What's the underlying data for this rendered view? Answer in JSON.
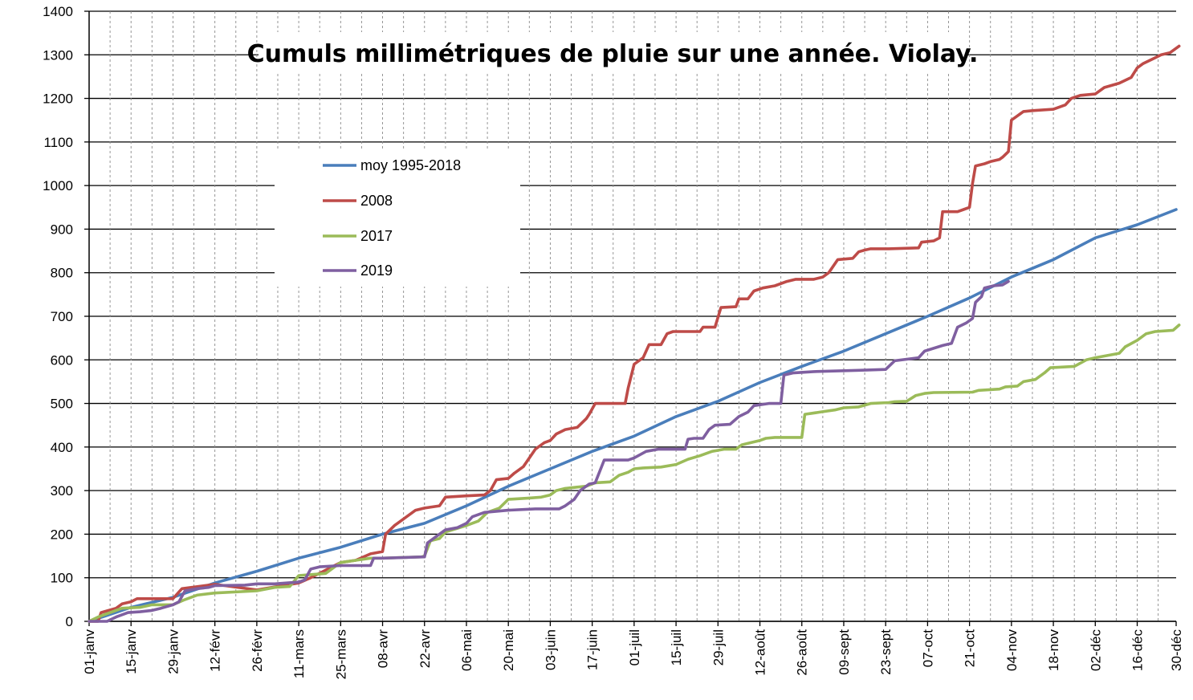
{
  "chart_data": {
    "type": "line",
    "title": "Cumuls millimétriques de pluie sur une année. Violay.",
    "xlabel": "",
    "ylabel": "",
    "ylim": [
      0,
      1400
    ],
    "yticks": [
      0,
      100,
      200,
      300,
      400,
      500,
      600,
      700,
      800,
      900,
      1000,
      1100,
      1200,
      1300,
      1400
    ],
    "xlim": [
      1,
      364
    ],
    "xticks": [
      {
        "day": 1,
        "label": "01-janv"
      },
      {
        "day": 15,
        "label": "15-janv"
      },
      {
        "day": 29,
        "label": "29-janv"
      },
      {
        "day": 43,
        "label": "12-févr"
      },
      {
        "day": 57,
        "label": "26-févr"
      },
      {
        "day": 71,
        "label": "11-mars"
      },
      {
        "day": 85,
        "label": "25-mars"
      },
      {
        "day": 99,
        "label": "08-avr"
      },
      {
        "day": 113,
        "label": "22-avr"
      },
      {
        "day": 127,
        "label": "06-mai"
      },
      {
        "day": 141,
        "label": "20-mai"
      },
      {
        "day": 155,
        "label": "03-juin"
      },
      {
        "day": 169,
        "label": "17-juin"
      },
      {
        "day": 183,
        "label": "01-juil"
      },
      {
        "day": 197,
        "label": "15-juil"
      },
      {
        "day": 211,
        "label": "29-juil"
      },
      {
        "day": 225,
        "label": "12-août"
      },
      {
        "day": 239,
        "label": "26-août"
      },
      {
        "day": 253,
        "label": "09-sept"
      },
      {
        "day": 267,
        "label": "23-sept"
      },
      {
        "day": 281,
        "label": "07-oct"
      },
      {
        "day": 295,
        "label": "21-oct"
      },
      {
        "day": 309,
        "label": "04-nov"
      },
      {
        "day": 323,
        "label": "18-nov"
      },
      {
        "day": 337,
        "label": "02-déc"
      },
      {
        "day": 351,
        "label": "16-déc"
      },
      {
        "day": 364,
        "label": "30-déc"
      }
    ],
    "grid": "horizontal",
    "legend_position": "upper-left",
    "series": [
      {
        "name": "moy 1995-2018",
        "color": "#4a7ebb",
        "points": [
          [
            1,
            0
          ],
          [
            15,
            32
          ],
          [
            29,
            55
          ],
          [
            43,
            88
          ],
          [
            57,
            115
          ],
          [
            71,
            145
          ],
          [
            85,
            170
          ],
          [
            99,
            200
          ],
          [
            113,
            225
          ],
          [
            127,
            265
          ],
          [
            141,
            310
          ],
          [
            155,
            350
          ],
          [
            169,
            390
          ],
          [
            183,
            425
          ],
          [
            197,
            470
          ],
          [
            211,
            505
          ],
          [
            225,
            548
          ],
          [
            239,
            585
          ],
          [
            253,
            620
          ],
          [
            267,
            660
          ],
          [
            281,
            700
          ],
          [
            295,
            742
          ],
          [
            309,
            790
          ],
          [
            323,
            830
          ],
          [
            337,
            880
          ],
          [
            351,
            910
          ],
          [
            364,
            945
          ]
        ]
      },
      {
        "name": "2008",
        "color": "#be4b48",
        "points": [
          [
            1,
            0
          ],
          [
            4,
            0
          ],
          [
            5,
            20
          ],
          [
            10,
            30
          ],
          [
            12,
            40
          ],
          [
            15,
            45
          ],
          [
            17,
            52
          ],
          [
            20,
            52
          ],
          [
            29,
            52
          ],
          [
            32,
            75
          ],
          [
            43,
            85
          ],
          [
            57,
            72
          ],
          [
            71,
            88
          ],
          [
            75,
            100
          ],
          [
            85,
            135
          ],
          [
            90,
            140
          ],
          [
            95,
            155
          ],
          [
            99,
            160
          ],
          [
            100,
            200
          ],
          [
            103,
            220
          ],
          [
            106,
            235
          ],
          [
            110,
            255
          ],
          [
            113,
            260
          ],
          [
            118,
            265
          ],
          [
            120,
            285
          ],
          [
            127,
            288
          ],
          [
            133,
            290
          ],
          [
            135,
            300
          ],
          [
            137,
            325
          ],
          [
            141,
            328
          ],
          [
            143,
            340
          ],
          [
            146,
            355
          ],
          [
            150,
            395
          ],
          [
            153,
            410
          ],
          [
            155,
            415
          ],
          [
            157,
            430
          ],
          [
            160,
            440
          ],
          [
            164,
            445
          ],
          [
            167,
            465
          ],
          [
            168,
            475
          ],
          [
            170,
            500
          ],
          [
            180,
            500
          ],
          [
            181,
            535
          ],
          [
            183,
            590
          ],
          [
            186,
            605
          ],
          [
            188,
            635
          ],
          [
            192,
            635
          ],
          [
            194,
            660
          ],
          [
            196,
            665
          ],
          [
            205,
            665
          ],
          [
            206,
            675
          ],
          [
            210,
            675
          ],
          [
            212,
            720
          ],
          [
            217,
            722
          ],
          [
            218,
            740
          ],
          [
            221,
            740
          ],
          [
            223,
            758
          ],
          [
            226,
            765
          ],
          [
            230,
            770
          ],
          [
            234,
            780
          ],
          [
            237,
            785
          ],
          [
            243,
            785
          ],
          [
            246,
            790
          ],
          [
            248,
            800
          ],
          [
            249,
            810
          ],
          [
            251,
            830
          ],
          [
            256,
            833
          ],
          [
            258,
            848
          ],
          [
            260,
            852
          ],
          [
            262,
            855
          ],
          [
            268,
            855
          ],
          [
            278,
            857
          ],
          [
            279,
            870
          ],
          [
            283,
            873
          ],
          [
            285,
            880
          ],
          [
            286,
            940
          ],
          [
            291,
            940
          ],
          [
            293,
            945
          ],
          [
            295,
            950
          ],
          [
            296,
            1005
          ],
          [
            297,
            1045
          ],
          [
            300,
            1050
          ],
          [
            302,
            1055
          ],
          [
            305,
            1060
          ],
          [
            306,
            1065
          ],
          [
            308,
            1078
          ],
          [
            309,
            1150
          ],
          [
            311,
            1160
          ],
          [
            313,
            1170
          ],
          [
            316,
            1172
          ],
          [
            323,
            1175
          ],
          [
            327,
            1185
          ],
          [
            329,
            1200
          ],
          [
            332,
            1207
          ],
          [
            337,
            1210
          ],
          [
            340,
            1225
          ],
          [
            345,
            1235
          ],
          [
            349,
            1248
          ],
          [
            351,
            1270
          ],
          [
            353,
            1280
          ],
          [
            356,
            1290
          ],
          [
            359,
            1300
          ],
          [
            362,
            1305
          ],
          [
            365,
            1320
          ]
        ]
      },
      {
        "name": "2017",
        "color": "#9bbb59",
        "points": [
          [
            1,
            0
          ],
          [
            4,
            10
          ],
          [
            12,
            30
          ],
          [
            18,
            32
          ],
          [
            22,
            38
          ],
          [
            29,
            38
          ],
          [
            33,
            50
          ],
          [
            37,
            60
          ],
          [
            43,
            65
          ],
          [
            57,
            70
          ],
          [
            63,
            78
          ],
          [
            68,
            80
          ],
          [
            71,
            105
          ],
          [
            80,
            110
          ],
          [
            85,
            135
          ],
          [
            90,
            140
          ],
          [
            95,
            145
          ],
          [
            99,
            145
          ],
          [
            112,
            148
          ],
          [
            113,
            150
          ],
          [
            115,
            185
          ],
          [
            118,
            190
          ],
          [
            120,
            205
          ],
          [
            127,
            220
          ],
          [
            131,
            230
          ],
          [
            134,
            250
          ],
          [
            138,
            260
          ],
          [
            141,
            280
          ],
          [
            148,
            283
          ],
          [
            152,
            285
          ],
          [
            155,
            290
          ],
          [
            157,
            300
          ],
          [
            160,
            305
          ],
          [
            164,
            308
          ],
          [
            167,
            310
          ],
          [
            170,
            318
          ],
          [
            175,
            320
          ],
          [
            178,
            335
          ],
          [
            181,
            342
          ],
          [
            183,
            350
          ],
          [
            186,
            352
          ],
          [
            192,
            354
          ],
          [
            197,
            360
          ],
          [
            201,
            372
          ],
          [
            205,
            380
          ],
          [
            209,
            390
          ],
          [
            213,
            395
          ],
          [
            217,
            395
          ],
          [
            219,
            405
          ],
          [
            222,
            410
          ],
          [
            225,
            415
          ],
          [
            227,
            420
          ],
          [
            230,
            422
          ],
          [
            239,
            422
          ],
          [
            240,
            475
          ],
          [
            245,
            480
          ],
          [
            250,
            485
          ],
          [
            253,
            490
          ],
          [
            258,
            492
          ],
          [
            262,
            500
          ],
          [
            268,
            502
          ],
          [
            270,
            504
          ],
          [
            274,
            505
          ],
          [
            277,
            518
          ],
          [
            280,
            523
          ],
          [
            283,
            525
          ],
          [
            296,
            526
          ],
          [
            298,
            530
          ],
          [
            305,
            533
          ],
          [
            307,
            538
          ],
          [
            311,
            540
          ],
          [
            313,
            550
          ],
          [
            317,
            555
          ],
          [
            320,
            570
          ],
          [
            322,
            582
          ],
          [
            330,
            585
          ],
          [
            334,
            600
          ],
          [
            337,
            605
          ],
          [
            341,
            610
          ],
          [
            345,
            615
          ],
          [
            347,
            630
          ],
          [
            351,
            645
          ],
          [
            354,
            660
          ],
          [
            357,
            665
          ],
          [
            363,
            668
          ],
          [
            365,
            680
          ]
        ]
      },
      {
        "name": "2019",
        "color": "#7f5fa0",
        "points": [
          [
            1,
            0
          ],
          [
            7,
            0
          ],
          [
            10,
            10
          ],
          [
            14,
            20
          ],
          [
            18,
            22
          ],
          [
            22,
            25
          ],
          [
            25,
            30
          ],
          [
            29,
            38
          ],
          [
            31,
            45
          ],
          [
            33,
            70
          ],
          [
            37,
            75
          ],
          [
            41,
            78
          ],
          [
            43,
            82
          ],
          [
            53,
            83
          ],
          [
            57,
            86
          ],
          [
            63,
            86
          ],
          [
            71,
            90
          ],
          [
            73,
            95
          ],
          [
            75,
            120
          ],
          [
            78,
            125
          ],
          [
            85,
            128
          ],
          [
            89,
            128
          ],
          [
            95,
            128
          ],
          [
            96,
            145
          ],
          [
            99,
            145
          ],
          [
            113,
            148
          ],
          [
            114,
            180
          ],
          [
            117,
            195
          ],
          [
            120,
            210
          ],
          [
            124,
            215
          ],
          [
            127,
            225
          ],
          [
            129,
            240
          ],
          [
            133,
            250
          ],
          [
            141,
            255
          ],
          [
            150,
            258
          ],
          [
            158,
            258
          ],
          [
            160,
            265
          ],
          [
            163,
            280
          ],
          [
            165,
            300
          ],
          [
            168,
            315
          ],
          [
            170,
            318
          ],
          [
            171,
            335
          ],
          [
            173,
            370
          ],
          [
            181,
            370
          ],
          [
            183,
            375
          ],
          [
            187,
            390
          ],
          [
            191,
            395
          ],
          [
            200,
            395
          ],
          [
            201,
            418
          ],
          [
            203,
            420
          ],
          [
            206,
            420
          ],
          [
            208,
            440
          ],
          [
            210,
            450
          ],
          [
            215,
            452
          ],
          [
            218,
            470
          ],
          [
            221,
            480
          ],
          [
            223,
            495
          ],
          [
            228,
            500
          ],
          [
            232,
            500
          ],
          [
            233,
            565
          ],
          [
            236,
            570
          ],
          [
            243,
            573
          ],
          [
            258,
            576
          ],
          [
            267,
            578
          ],
          [
            270,
            598
          ],
          [
            278,
            605
          ],
          [
            280,
            620
          ],
          [
            286,
            633
          ],
          [
            289,
            638
          ],
          [
            291,
            675
          ],
          [
            294,
            685
          ],
          [
            296,
            695
          ],
          [
            297,
            732
          ],
          [
            299,
            745
          ],
          [
            300,
            765
          ],
          [
            303,
            770
          ],
          [
            306,
            772
          ],
          [
            308,
            780
          ]
        ]
      }
    ]
  }
}
